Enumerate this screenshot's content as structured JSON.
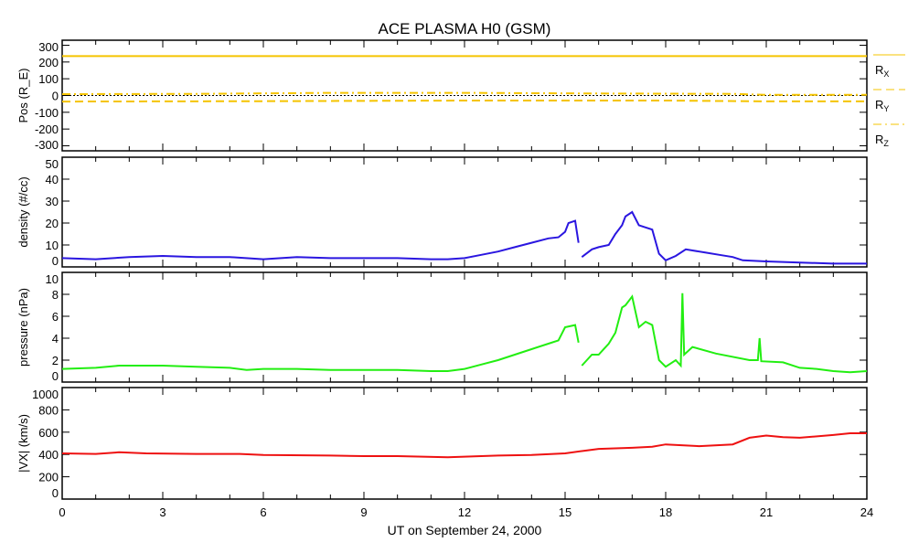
{
  "chart_data": [
    {
      "type": "line",
      "title": "ACE PLASMA H0 (GSM)",
      "ylabel": "Pos (R_E)",
      "ylabel_main": "Pos (R",
      "ylabel_sub": "E",
      "ylabel_end": ")",
      "ylim": [
        -330,
        330
      ],
      "yticks": [
        300,
        200,
        100,
        0,
        -100,
        -200,
        -300
      ],
      "zero_line": true,
      "legend_placement": "right",
      "series": [
        {
          "name": "RX",
          "label_main": "R",
          "label_sub": "X",
          "color": "#f5c400",
          "dash": "solid",
          "x": [
            0,
            24
          ],
          "y": [
            235,
            235
          ]
        },
        {
          "name": "RY",
          "label_main": "R",
          "label_sub": "Y",
          "color": "#f5c400",
          "dash": "dashed",
          "x": [
            0,
            6,
            12,
            18,
            21,
            24
          ],
          "y": [
            -36,
            -34,
            -30,
            -30,
            -35,
            -35
          ]
        },
        {
          "name": "RZ",
          "label_main": "R",
          "label_sub": "Z",
          "color": "#f5c400",
          "dash": "dashdot",
          "x": [
            0,
            4,
            8,
            12,
            16,
            20,
            21,
            24
          ],
          "y": [
            8,
            10,
            16,
            16,
            12,
            10,
            4,
            4
          ]
        }
      ]
    },
    {
      "type": "line",
      "ylabel": "density (#/cc)",
      "ylim": [
        0,
        50
      ],
      "yticks": [
        0,
        10,
        20,
        30,
        40,
        50
      ],
      "series": [
        {
          "name": "density",
          "color": "#2a16e0",
          "x": [
            0,
            1,
            2,
            3,
            4,
            5,
            6,
            7,
            8,
            9,
            10,
            11,
            11.5,
            12,
            12.5,
            13,
            13.5,
            14,
            14.5,
            14.8,
            15,
            15.1,
            15.3,
            15.4,
            15.45,
            15.5,
            15.8,
            16,
            16.3,
            16.5,
            16.7,
            16.8,
            17,
            17.2,
            17.4,
            17.6,
            17.8,
            18,
            18.3,
            18.6,
            18.8,
            19.2,
            19.6,
            20,
            20.3,
            21,
            22,
            23,
            24
          ],
          "y": [
            4,
            3.5,
            4.5,
            5,
            4.5,
            4.5,
            3.5,
            4.5,
            4,
            4,
            4,
            3.5,
            3.5,
            4,
            5.5,
            7,
            9,
            11,
            13,
            13.5,
            16,
            20,
            21,
            11,
            null,
            4.5,
            8,
            9,
            10,
            15,
            19,
            23,
            25,
            19,
            18,
            17,
            6,
            3,
            5,
            8,
            7.5,
            6.5,
            5.5,
            4.5,
            3,
            2.5,
            2,
            1.5,
            1.5
          ]
        }
      ]
    },
    {
      "type": "line",
      "ylabel": "pressure (nPa)",
      "ylim": [
        0,
        10
      ],
      "yticks": [
        0,
        2,
        4,
        6,
        8,
        10
      ],
      "series": [
        {
          "name": "pressure",
          "color": "#22ee11",
          "x": [
            0,
            1,
            1.7,
            2.5,
            3,
            4,
            5,
            5.5,
            6,
            7,
            8,
            9,
            10,
            11,
            11.5,
            12,
            12.5,
            13,
            13.5,
            14,
            14.5,
            14.8,
            15,
            15.3,
            15.4,
            15.45,
            15.5,
            15.8,
            16,
            16.3,
            16.5,
            16.7,
            16.8,
            17,
            17.2,
            17.4,
            17.6,
            17.8,
            18,
            18.3,
            18.45,
            18.5,
            18.55,
            18.8,
            19.5,
            20.5,
            20.75,
            20.8,
            20.85,
            21.5,
            22,
            22.5,
            23,
            23.5,
            24
          ],
          "y": [
            1.2,
            1.3,
            1.5,
            1.5,
            1.5,
            1.4,
            1.3,
            1.1,
            1.2,
            1.2,
            1.1,
            1.1,
            1.1,
            1.0,
            1.0,
            1.2,
            1.6,
            2,
            2.5,
            3,
            3.5,
            3.8,
            5,
            5.2,
            3.6,
            null,
            1.5,
            2.5,
            2.5,
            3.5,
            4.5,
            6.8,
            7,
            7.8,
            5,
            5.5,
            5.2,
            2,
            1.4,
            2,
            1.5,
            8.1,
            2.5,
            3.2,
            2.6,
            2,
            2,
            4,
            1.9,
            1.8,
            1.3,
            1.2,
            1.0,
            0.9,
            1.0
          ]
        }
      ]
    },
    {
      "type": "line",
      "ylabel_main": "|V",
      "ylabel_sub": "X",
      "ylabel_end": "| (km/s)",
      "ylabel": "|VX| (km/s)",
      "ylim": [
        0,
        1000
      ],
      "yticks": [
        0,
        200,
        400,
        600,
        800,
        1000
      ],
      "xlabel": "UT on September 24, 2000",
      "xlim": [
        0,
        24
      ],
      "xticks": [
        0,
        3,
        6,
        9,
        12,
        15,
        18,
        21,
        24
      ],
      "series": [
        {
          "name": "|Vx|",
          "color": "#ee1111",
          "x": [
            0,
            1,
            1.7,
            2.5,
            4,
            5.3,
            6,
            8,
            9,
            10,
            11.5,
            12,
            13,
            14,
            15,
            15.5,
            16,
            17,
            17.6,
            18,
            19,
            20,
            20.5,
            21,
            21.5,
            22,
            23,
            23.5,
            24
          ],
          "y": [
            410,
            405,
            420,
            410,
            405,
            405,
            395,
            390,
            385,
            385,
            375,
            380,
            390,
            395,
            410,
            430,
            450,
            460,
            470,
            490,
            475,
            490,
            550,
            570,
            555,
            550,
            575,
            590,
            590
          ]
        }
      ]
    }
  ]
}
